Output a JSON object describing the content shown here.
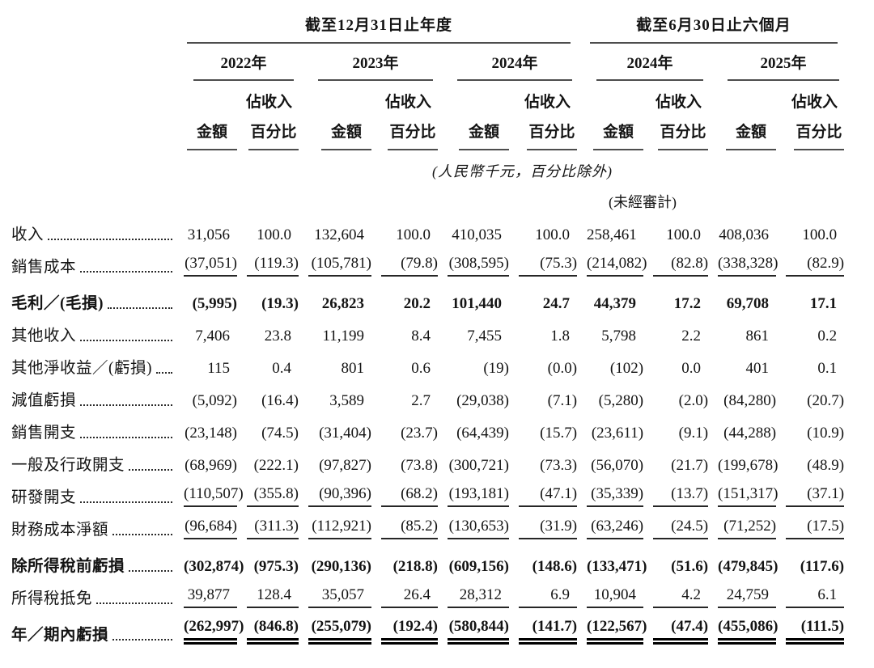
{
  "document": {
    "period_groups": [
      {
        "title": "截至12月31日止年度",
        "years": [
          "2022年",
          "2023年",
          "2024年"
        ]
      },
      {
        "title": "截至6月30日止六個月",
        "years": [
          "2024年",
          "2025年"
        ]
      }
    ],
    "column_headers": {
      "amount": "金額",
      "pct_top": "佔收入",
      "pct_bottom": "百分比"
    },
    "unit_note": "(人民幣千元，百分比除外)",
    "unaudited_note": "(未經審計)",
    "rows": [
      {
        "label": "收入",
        "emphasis": false,
        "rule": null,
        "values": [
          "31,056",
          "100.0",
          "132,604",
          "100.0",
          "410,035",
          "100.0",
          "258,461",
          "100.0",
          "408,036",
          "100.0"
        ]
      },
      {
        "label": "銷售成本",
        "emphasis": false,
        "rule": "single",
        "values": [
          "(37,051)",
          "(119.3)",
          "(105,781)",
          "(79.8)",
          "(308,595)",
          "(75.3)",
          "(214,082)",
          "(82.8)",
          "(338,328)",
          "(82.9)"
        ]
      },
      {
        "label": "毛利／(毛損)",
        "emphasis": true,
        "rule": null,
        "values": [
          "(5,995)",
          "(19.3)",
          "26,823",
          "20.2",
          "101,440",
          "24.7",
          "44,379",
          "17.2",
          "69,708",
          "17.1"
        ]
      },
      {
        "label": "其他收入",
        "emphasis": false,
        "rule": null,
        "values": [
          "7,406",
          "23.8",
          "11,199",
          "8.4",
          "7,455",
          "1.8",
          "5,798",
          "2.2",
          "861",
          "0.2"
        ]
      },
      {
        "label": "其他淨收益／(虧損)",
        "emphasis": false,
        "rule": null,
        "values": [
          "115",
          "0.4",
          "801",
          "0.6",
          "(19)",
          "(0.0)",
          "(102)",
          "0.0",
          "401",
          "0.1"
        ]
      },
      {
        "label": "減值虧損",
        "emphasis": false,
        "rule": null,
        "values": [
          "(5,092)",
          "(16.4)",
          "3,589",
          "2.7",
          "(29,038)",
          "(7.1)",
          "(5,280)",
          "(2.0)",
          "(84,280)",
          "(20.7)"
        ]
      },
      {
        "label": "銷售開支",
        "emphasis": false,
        "rule": null,
        "values": [
          "(23,148)",
          "(74.5)",
          "(31,404)",
          "(23.7)",
          "(64,439)",
          "(15.7)",
          "(23,611)",
          "(9.1)",
          "(44,288)",
          "(10.9)"
        ]
      },
      {
        "label": "一般及行政開支",
        "emphasis": false,
        "rule": null,
        "values": [
          "(68,969)",
          "(222.1)",
          "(97,827)",
          "(73.8)",
          "(300,721)",
          "(73.3)",
          "(56,070)",
          "(21.7)",
          "(199,678)",
          "(48.9)"
        ]
      },
      {
        "label": "研發開支",
        "emphasis": false,
        "rule": "single",
        "values": [
          "(110,507)",
          "(355.8)",
          "(90,396)",
          "(68.2)",
          "(193,181)",
          "(47.1)",
          "(35,339)",
          "(13.7)",
          "(151,317)",
          "(37.1)"
        ]
      },
      {
        "label": "財務成本淨額",
        "emphasis": false,
        "rule": "single",
        "values": [
          "(96,684)",
          "(311.3)",
          "(112,921)",
          "(85.2)",
          "(130,653)",
          "(31.9)",
          "(63,246)",
          "(24.5)",
          "(71,252)",
          "(17.5)"
        ]
      },
      {
        "label": "除所得稅前虧損",
        "emphasis": true,
        "rule": null,
        "values": [
          "(302,874)",
          "(975.3)",
          "(290,136)",
          "(218.8)",
          "(609,156)",
          "(148.6)",
          "(133,471)",
          "(51.6)",
          "(479,845)",
          "(117.6)"
        ]
      },
      {
        "label": "所得稅抵免",
        "emphasis": false,
        "rule": "single",
        "values": [
          "39,877",
          "128.4",
          "35,057",
          "26.4",
          "28,312",
          "6.9",
          "10,904",
          "4.2",
          "24,759",
          "6.1"
        ]
      },
      {
        "label": "年／期內虧損",
        "emphasis": true,
        "rule": "double",
        "values": [
          "(262,997)",
          "(846.8)",
          "(255,079)",
          "(192.4)",
          "(580,844)",
          "(141.7)",
          "(122,567)",
          "(47.4)",
          "(455,086)",
          "(111.5)"
        ]
      }
    ]
  }
}
